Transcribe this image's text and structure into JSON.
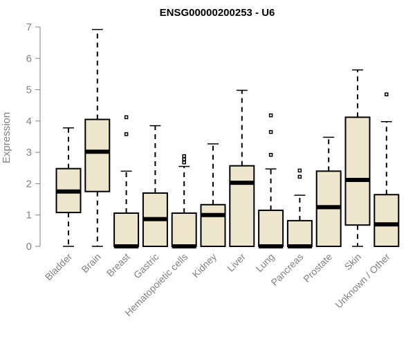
{
  "chart_data": {
    "type": "boxplot",
    "title": "ENSG00000200253 - U6",
    "xlabel": "",
    "ylabel": "Expression",
    "ylim": [
      0,
      7
    ],
    "yticks": [
      "0",
      "1",
      "2",
      "3",
      "4",
      "5",
      "6",
      "7"
    ],
    "grid": false,
    "legend": "none",
    "box_fill": "#ede6cc",
    "box_stroke": "#000000",
    "categories": [
      "Bladder",
      "Brain",
      "Breast",
      "Gastric",
      "Hematopoietic cells",
      "Kidney",
      "Liver",
      "Lung",
      "Pancreas",
      "Prostate",
      "Skin",
      "Unknown / Other"
    ],
    "boxes": [
      {
        "min": 0,
        "q1": 1.08,
        "median": 1.75,
        "q3": 2.48,
        "max": 3.78,
        "outliers": []
      },
      {
        "min": 0,
        "q1": 1.75,
        "median": 3.02,
        "q3": 4.05,
        "max": 6.92,
        "outliers": []
      },
      {
        "min": 0,
        "q1": 0,
        "median": 0,
        "q3": 1.06,
        "max": 2.4,
        "outliers": [
          3.58,
          4.12
        ]
      },
      {
        "min": 0,
        "q1": 0,
        "median": 0.87,
        "q3": 1.7,
        "max": 3.85,
        "outliers": []
      },
      {
        "min": 0,
        "q1": 0,
        "median": 0,
        "q3": 1.06,
        "max": 2.55,
        "outliers": [
          2.68,
          2.78,
          2.88
        ]
      },
      {
        "min": 0,
        "q1": 0,
        "median": 1.0,
        "q3": 1.33,
        "max": 3.27,
        "outliers": []
      },
      {
        "min": 0,
        "q1": 0,
        "median": 2.03,
        "q3": 2.57,
        "max": 4.98,
        "outliers": []
      },
      {
        "min": 0,
        "q1": 0,
        "median": 0,
        "q3": 1.15,
        "max": 2.47,
        "outliers": [
          2.92,
          3.65,
          4.18
        ]
      },
      {
        "min": 0,
        "q1": 0,
        "median": 0,
        "q3": 0.82,
        "max": 1.63,
        "outliers": [
          2.22,
          2.42
        ]
      },
      {
        "min": 0,
        "q1": 0,
        "median": 1.25,
        "q3": 2.4,
        "max": 3.48,
        "outliers": []
      },
      {
        "min": 0,
        "q1": 0.68,
        "median": 2.12,
        "q3": 4.12,
        "max": 5.63,
        "outliers": []
      },
      {
        "min": 0,
        "q1": 0,
        "median": 0.7,
        "q3": 1.65,
        "max": 3.98,
        "outliers": [
          4.85
        ]
      }
    ]
  }
}
